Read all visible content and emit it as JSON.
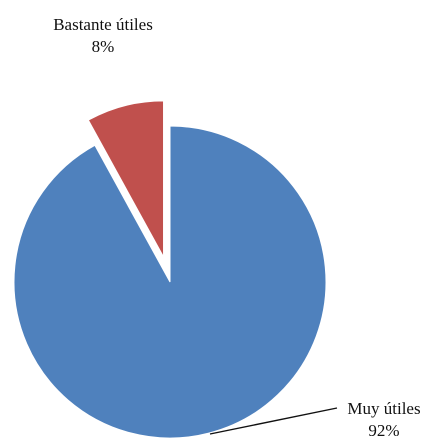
{
  "chart_data": {
    "type": "pie",
    "exploded": true,
    "categories": [
      "Muy útiles",
      "Bastante útiles"
    ],
    "values": [
      92,
      8
    ],
    "percent_labels": [
      "92%",
      "8%"
    ],
    "colors": {
      "Muy útiles": "#4F81BD",
      "Bastante útiles": "#C0504D"
    },
    "label_style": "outside labels with leader line for the large slice"
  }
}
